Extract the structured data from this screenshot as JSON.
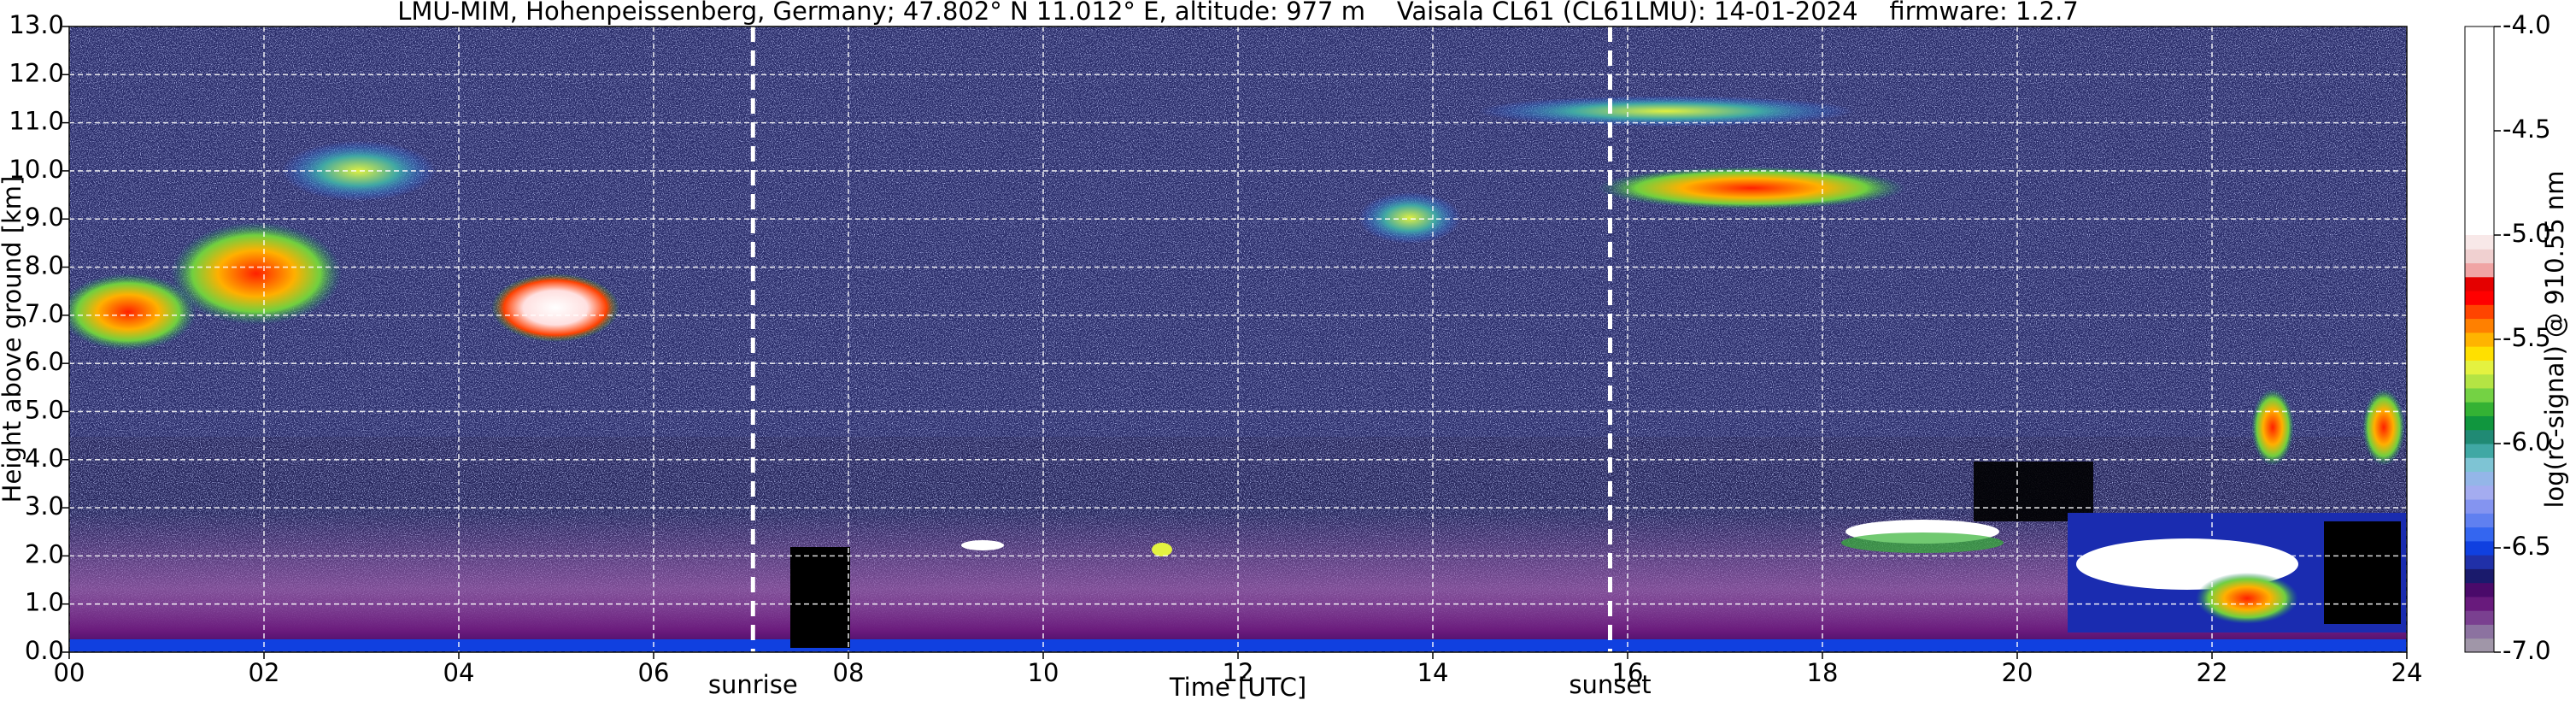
{
  "chart_data": {
    "type": "heatmap",
    "title": "LMU-MIM, Hohenpeissenberg, Germany; 47.802° N 11.012° E, altitude: 977 m    Vaisala CL61 (CL61LMU): 14-01-2024    firmware: 1.2.7",
    "x_label": "Time [UTC]",
    "y_label": "Height above ground [km]",
    "colorbar_label": "log(rc-signal) @ 910.55 nm",
    "xlim": [
      0,
      24
    ],
    "xticks": [
      {
        "value": 0,
        "label": "00"
      },
      {
        "value": 2,
        "label": "02"
      },
      {
        "value": 4,
        "label": "04"
      },
      {
        "value": 6,
        "label": "06"
      },
      {
        "value": 8,
        "label": "08"
      },
      10,
      12,
      14,
      16,
      18,
      20,
      22,
      24
    ],
    "ylim": [
      0,
      13
    ],
    "yticks": [
      {
        "value": 0,
        "label": "0.0"
      },
      {
        "value": 1,
        "label": "1.0"
      },
      {
        "value": 2,
        "label": "2.0"
      },
      {
        "value": 3,
        "label": "3.0"
      },
      {
        "value": 4,
        "label": "4.0"
      },
      {
        "value": 5,
        "label": "5.0"
      },
      {
        "value": 6,
        "label": "6.0"
      },
      {
        "value": 7,
        "label": "7.0"
      },
      {
        "value": 8,
        "label": "8.0"
      },
      {
        "value": 9,
        "label": "9.0"
      },
      {
        "value": 10,
        "label": "10.0"
      },
      {
        "value": 11,
        "label": "11.0"
      },
      {
        "value": 12,
        "label": "12.0"
      },
      {
        "value": 13,
        "label": "13.0"
      }
    ],
    "clim": [
      -7,
      -4
    ],
    "cticks": [
      {
        "value": -4,
        "label": "-4.0"
      },
      {
        "value": -4.5,
        "label": "-4.5"
      },
      {
        "value": -5,
        "label": "-5.0"
      },
      {
        "value": -5.5,
        "label": "-5.5"
      },
      {
        "value": -6,
        "label": "-6.0"
      },
      {
        "value": -6.5,
        "label": "-6.5"
      },
      {
        "value": -7,
        "label": "-7.0"
      }
    ],
    "colormap_range": [
      -7,
      -5
    ],
    "colormap": [
      "#a096a8",
      "#8c72a0",
      "#7a4090",
      "#681a7c",
      "#4a0a6a",
      "#1a1a6c",
      "#2030a8",
      "#1040e0",
      "#3466f0",
      "#6080f0",
      "#8494f0",
      "#a4acf0",
      "#94b6e8",
      "#7ec4d4",
      "#40a8a4",
      "#208a74",
      "#10963e",
      "#34b234",
      "#74d244",
      "#b4e444",
      "#e4f240",
      "#ffe000",
      "#ffb400",
      "#ff8000",
      "#ff4400",
      "#ff0000",
      "#e40000",
      "#f0a4a4",
      "#f0d0d0",
      "#f8e8e8"
    ],
    "over_color": "#ffffff",
    "grid": true,
    "annotations": [
      {
        "text": "sunrise",
        "x": 7.02
      },
      {
        "text": "sunset",
        "x": 15.82
      }
    ]
  }
}
